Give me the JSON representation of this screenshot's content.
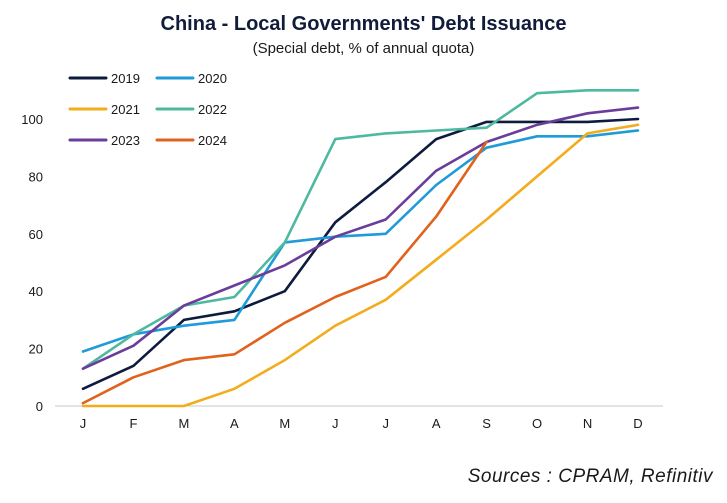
{
  "chart_data": {
    "type": "line",
    "title": "China - Local Governments' Debt Issuance",
    "subtitle": "(Special debt, % of annual quota)",
    "xlabel": "",
    "ylabel": "",
    "categories": [
      "J",
      "F",
      "M",
      "A",
      "M",
      "J",
      "J",
      "A",
      "S",
      "O",
      "N",
      "D"
    ],
    "yticks": [
      0,
      20,
      40,
      60,
      80,
      100
    ],
    "ylim": [
      0,
      115
    ],
    "grid": false,
    "legend_position": "top-left",
    "series": [
      {
        "name": "2019",
        "color": "#0d1b3e",
        "values": [
          6,
          14,
          30,
          33,
          40,
          64,
          78,
          93,
          99,
          99,
          99,
          100
        ]
      },
      {
        "name": "2020",
        "color": "#1f9bd7",
        "values": [
          19,
          25,
          28,
          30,
          57,
          59,
          60,
          77,
          90,
          94,
          94,
          96
        ]
      },
      {
        "name": "2021",
        "color": "#f2ac1d",
        "values": [
          0,
          0,
          0,
          6,
          16,
          28,
          37,
          51,
          65,
          80,
          95,
          98
        ]
      },
      {
        "name": "2022",
        "color": "#4fb8a0",
        "values": [
          13,
          25,
          35,
          38,
          57,
          93,
          95,
          96,
          97,
          109,
          110,
          110
        ]
      },
      {
        "name": "2023",
        "color": "#6a3d9a",
        "values": [
          13,
          21,
          35,
          42,
          49,
          59,
          65,
          82,
          92,
          98,
          102,
          104
        ]
      },
      {
        "name": "2024",
        "color": "#e1621c",
        "values": [
          1,
          10,
          16,
          18,
          29,
          38,
          45,
          66,
          92,
          null,
          null,
          null
        ]
      }
    ]
  },
  "source": "Sources : CPRAM, Refinitiv"
}
